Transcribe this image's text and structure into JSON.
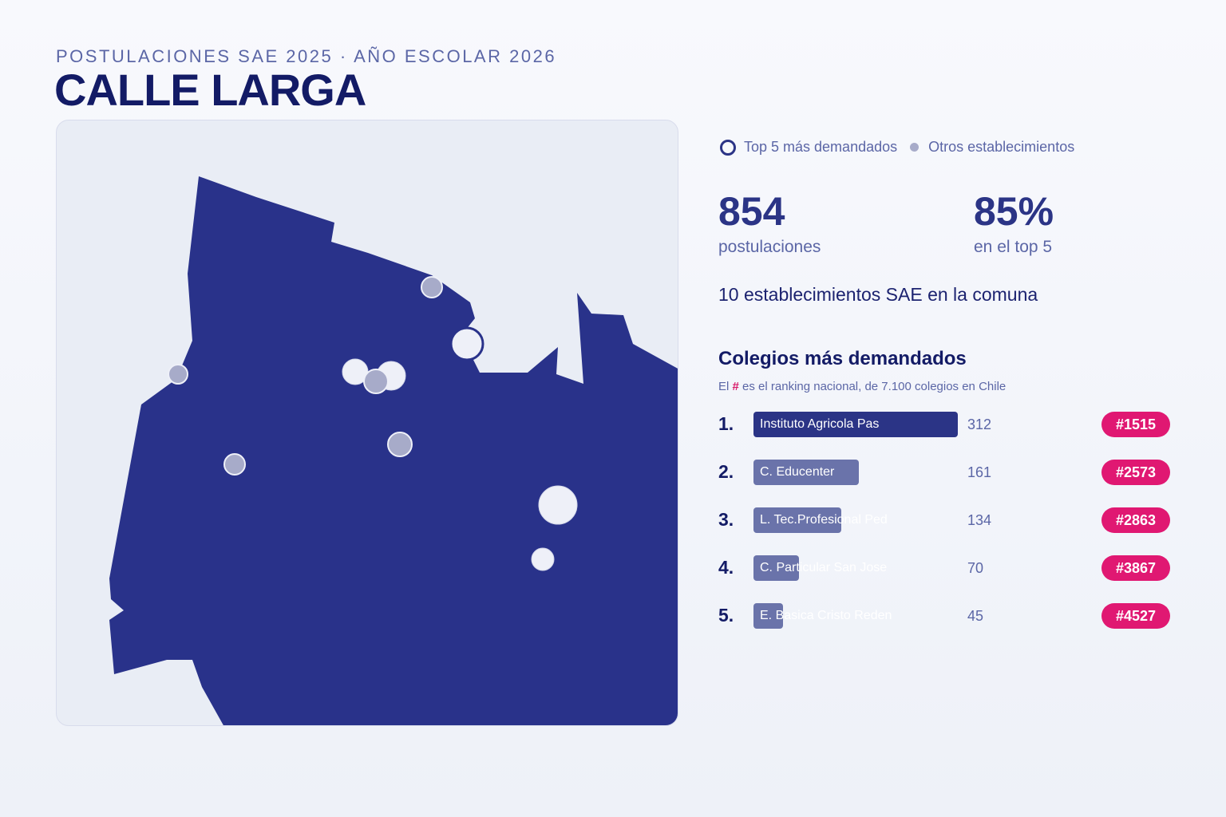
{
  "header": {
    "subtitle": "POSTULACIONES SAE 2025 · AÑO ESCOLAR 2026",
    "title": "CALLE LARGA"
  },
  "legend": {
    "top5": "Top 5 más demandados",
    "others": "Otros establecimientos"
  },
  "stats": {
    "applications_value": "854",
    "applications_label": "postulaciones",
    "top5_share_value": "85%",
    "top5_share_label": "en el top 5"
  },
  "establishments_line": "10 establecimientos SAE en la comuna",
  "ranking": {
    "title": "Colegios más demandados",
    "note_prefix": "El",
    "note_hash": "#",
    "note_suffix": "es el ranking nacional, de 7.100 colegios en Chile",
    "max_value": 312,
    "items": [
      {
        "pos": "1.",
        "name": "Instituto Agricola Pas",
        "value": 312,
        "value_label": "312",
        "rank": "#1515"
      },
      {
        "pos": "2.",
        "name": "C. Educenter",
        "value": 161,
        "value_label": "161",
        "rank": "#2573"
      },
      {
        "pos": "3.",
        "name": "L. Tec.Profesional Ped",
        "value": 134,
        "value_label": "134",
        "rank": "#2863"
      },
      {
        "pos": "4.",
        "name": "C. Particular San Jose",
        "value": 70,
        "value_label": "70",
        "rank": "#3867"
      },
      {
        "pos": "5.",
        "name": "E. Basica Cristo Reden",
        "value": 45,
        "value_label": "45",
        "rank": "#4527"
      }
    ]
  },
  "colors": {
    "region_fill": "#29328a",
    "map_background": "#e9edf5",
    "top5_marker": "#eef0f8",
    "other_marker": "#a7abc9",
    "top_bar": "#2b3486",
    "other_bar": "#6a73aa",
    "rank_badge": "#e01872"
  }
}
